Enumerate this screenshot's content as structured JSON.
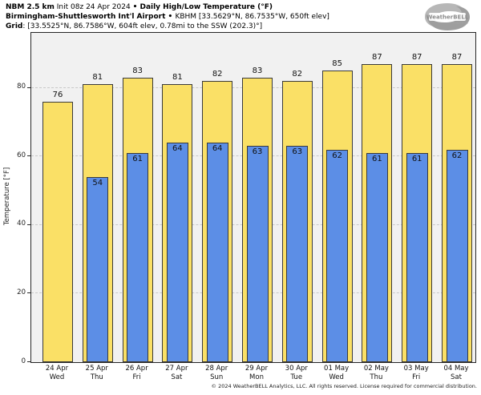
{
  "header": {
    "product": "NBM 2.5 km",
    "init": " Init 08z 24 Apr 2024 ",
    "sep": "• ",
    "metric": "Daily High/Low Temperature (°F)",
    "station_name": "Birmingham-Shuttlesworth Int'l Airport",
    "station_sep": " • ",
    "station_info": "KBHM [33.5629°N, 86.7535°W, 650ft elev]",
    "grid_label": "Grid",
    "grid_info": ": [33.5525°N, 86.7586°W, 604ft elev, 0.78mi to the SSW (202.3)°]"
  },
  "logo": {
    "brand": "WeatherBELL",
    "sub": "Analytics LLC"
  },
  "chart_data": {
    "type": "bar",
    "title": "Daily High/Low Temperature (°F)",
    "categories": [
      {
        "date": "24 Apr",
        "day": "Wed"
      },
      {
        "date": "25 Apr",
        "day": "Thu"
      },
      {
        "date": "26 Apr",
        "day": "Fri"
      },
      {
        "date": "27 Apr",
        "day": "Sat"
      },
      {
        "date": "28 Apr",
        "day": "Sun"
      },
      {
        "date": "29 Apr",
        "day": "Mon"
      },
      {
        "date": "30 Apr",
        "day": "Tue"
      },
      {
        "date": "01 May",
        "day": "Wed"
      },
      {
        "date": "02 May",
        "day": "Thu"
      },
      {
        "date": "03 May",
        "day": "Fri"
      },
      {
        "date": "04 May",
        "day": "Sat"
      }
    ],
    "series": [
      {
        "name": "Daily High",
        "color": "#FAE066",
        "values": [
          76,
          81,
          83,
          81,
          82,
          83,
          82,
          85,
          87,
          87,
          87
        ]
      },
      {
        "name": "Daily Low",
        "color": "#5C8EE6",
        "values": [
          null,
          54,
          61,
          64,
          64,
          63,
          63,
          62,
          61,
          61,
          62
        ]
      }
    ],
    "ylabel": "Temperature [°F]",
    "ylim": [
      0,
      96
    ],
    "yticks": [
      0,
      20,
      40,
      60,
      80
    ],
    "grid": "horizontal-dashed",
    "legend_position": "none",
    "plot_background": "#f1f1f1",
    "bar_edge_color": "#3a3a3a"
  },
  "footer": {
    "copyright": "© 2024 WeatherBELL Analytics, LLC. All rights reserved. License required for commercial distribution."
  }
}
